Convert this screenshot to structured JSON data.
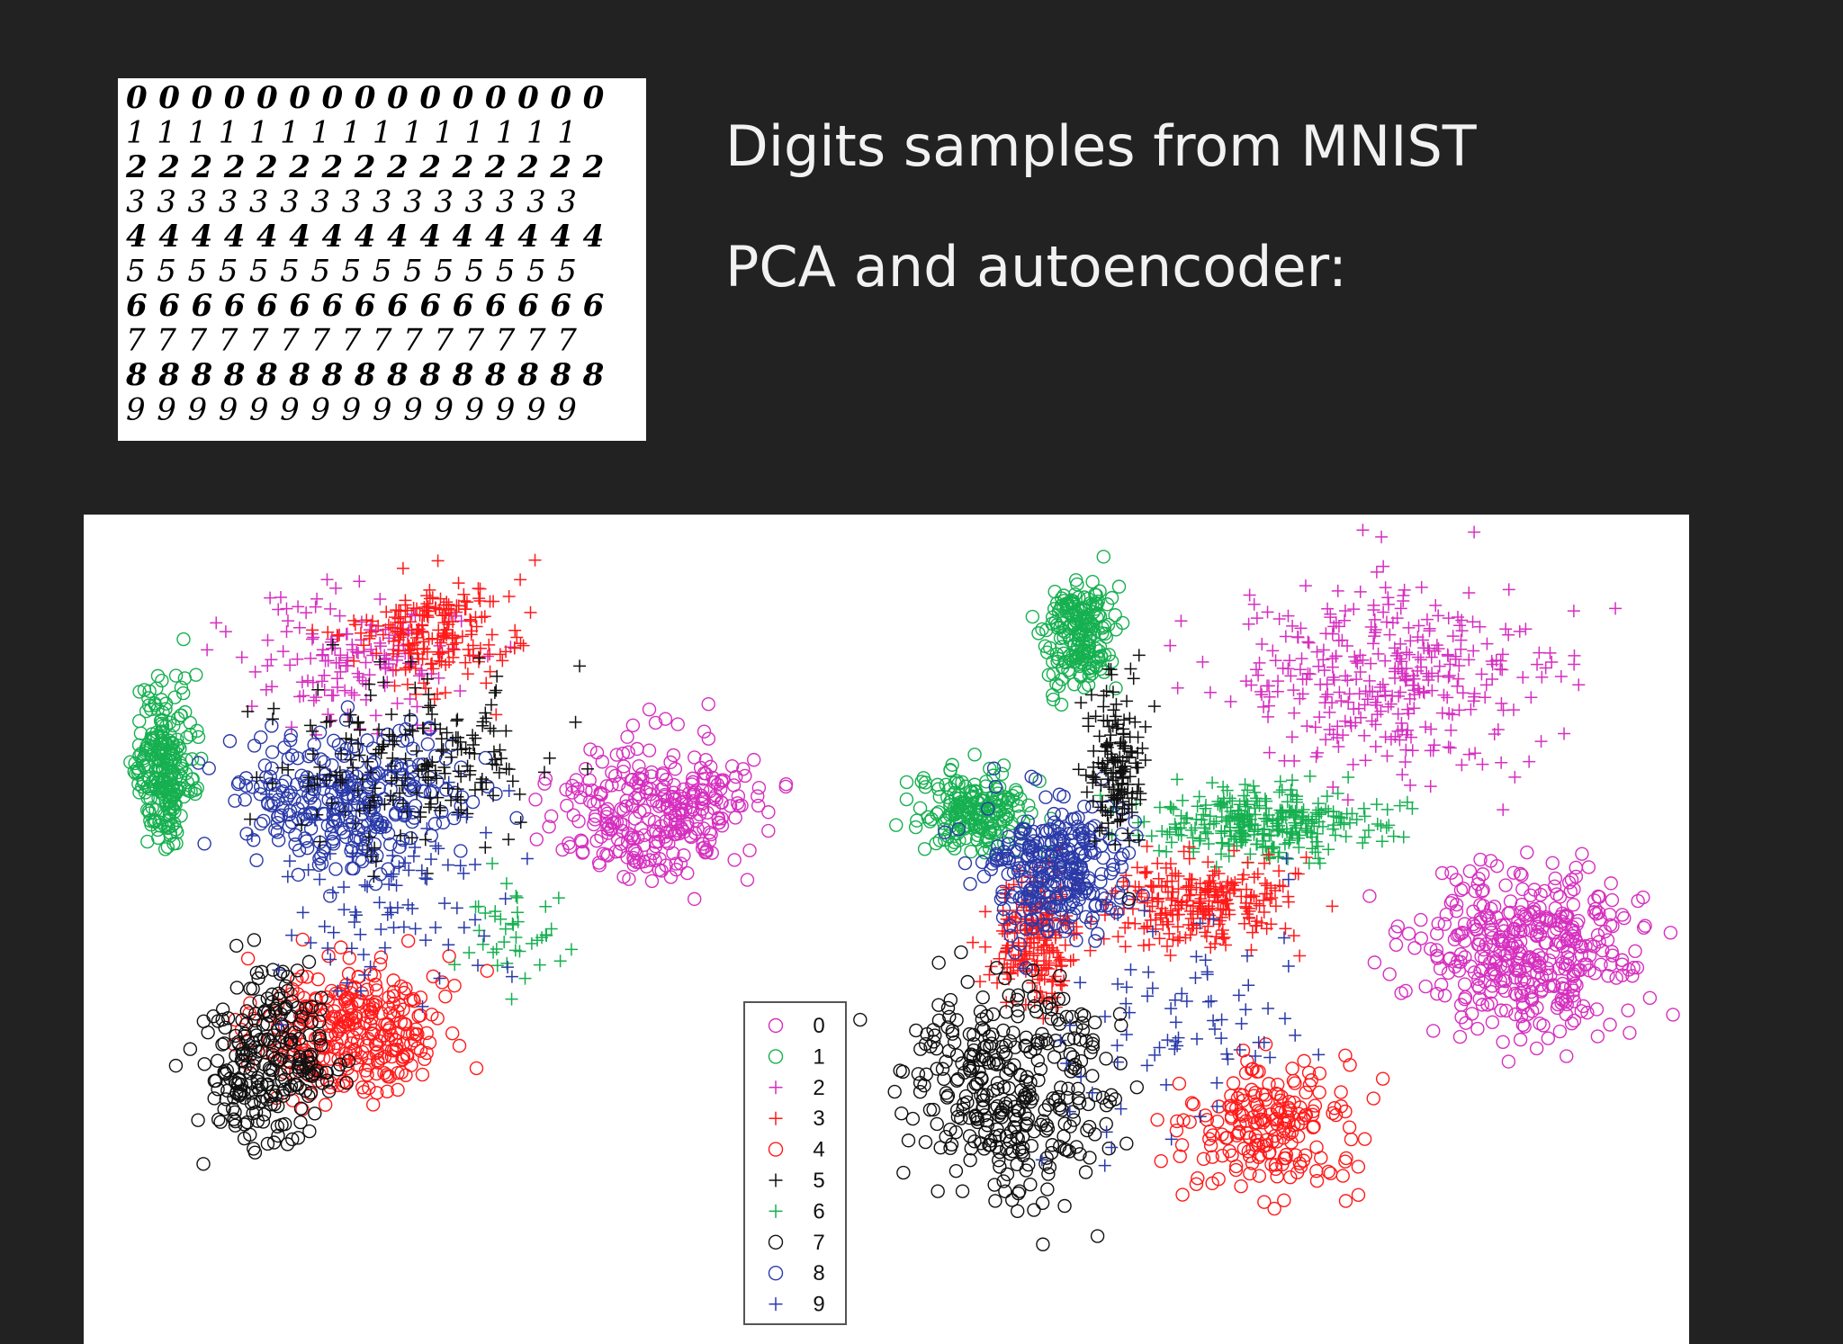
{
  "slide": {
    "title_lines": [
      "Digits samples from MNIST",
      "PCA and autoencoder:"
    ],
    "mnist_samples": [
      "000000000000000",
      "111111111111111",
      "222222222222222",
      "333333333333333",
      "444444444444444",
      "555555555555555",
      "666666666666666",
      "777777777777777",
      "888888888888888",
      "999999999999999"
    ],
    "legend": [
      {
        "label": "0",
        "marker": "circle",
        "color": "#d62fbf"
      },
      {
        "label": "1",
        "marker": "circle",
        "color": "#16b050"
      },
      {
        "label": "2",
        "marker": "plus",
        "color": "#d62fbf"
      },
      {
        "label": "3",
        "marker": "plus",
        "color": "#ff1a1a"
      },
      {
        "label": "4",
        "marker": "circle",
        "color": "#ff1a1a"
      },
      {
        "label": "5",
        "marker": "plus",
        "color": "#111111"
      },
      {
        "label": "6",
        "marker": "plus",
        "color": "#16b050"
      },
      {
        "label": "7",
        "marker": "circle",
        "color": "#111111"
      },
      {
        "label": "8",
        "marker": "circle",
        "color": "#2a3aa8"
      },
      {
        "label": "9",
        "marker": "plus",
        "color": "#2a3aa8"
      }
    ]
  }
}
